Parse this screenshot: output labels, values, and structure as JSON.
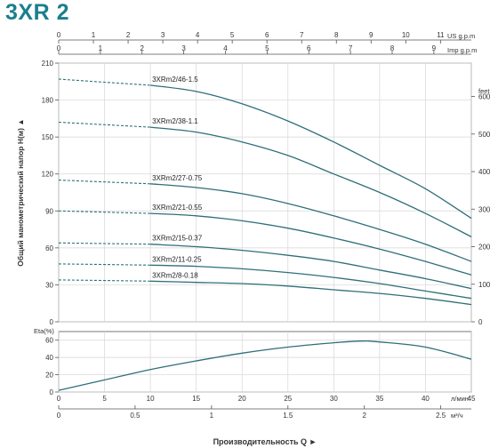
{
  "title": "3XR 2",
  "chart_data": [
    {
      "type": "line",
      "name": "head",
      "ylabel": "Общий манометрический напор H(м)",
      "ylim": [
        0,
        210
      ],
      "yticks": [
        0,
        30,
        60,
        90,
        120,
        150,
        180,
        210
      ],
      "y2label": "feet",
      "y2ticks": [
        0,
        100,
        200,
        300,
        400,
        500,
        600
      ],
      "xlabel": "Производительность Q",
      "xlim": [
        0,
        45
      ],
      "x_lmin_ticks": [
        0,
        5,
        10,
        15,
        20,
        25,
        30,
        35,
        40,
        45
      ],
      "x_lmin_unit": "л/мин",
      "x_m3h_ticks": [
        "0",
        "0.5",
        "1",
        "1.5",
        "2",
        "2.5"
      ],
      "x_m3h_unit": "м³/ч",
      "x_usgpm_ticks": [
        0,
        1,
        2,
        3,
        4,
        5,
        6,
        7,
        8,
        9,
        10,
        11
      ],
      "x_usgpm_unit": "US g.p.m",
      "x_impgpm_ticks": [
        0,
        1,
        2,
        3,
        4,
        5,
        6,
        7,
        8,
        9
      ],
      "x_impgpm_unit": "Imp g.p.m",
      "grid": true,
      "series": [
        {
          "name": "3XRm2/46-1.5",
          "x": [
            0,
            10,
            15,
            20,
            25,
            30,
            35,
            40,
            45
          ],
          "y": [
            197,
            192,
            187,
            177,
            163,
            146,
            127,
            108,
            84
          ]
        },
        {
          "name": "3XRm2/38-1.1",
          "x": [
            0,
            10,
            15,
            20,
            25,
            30,
            35,
            40,
            45
          ],
          "y": [
            162,
            158,
            154,
            146,
            135,
            120,
            105,
            88,
            69
          ]
        },
        {
          "name": "3XRm2/27-0.75",
          "x": [
            0,
            10,
            15,
            20,
            25,
            30,
            35,
            40,
            45
          ],
          "y": [
            115,
            112,
            109,
            104,
            96,
            86,
            75,
            63,
            49
          ]
        },
        {
          "name": "3XRm2/21-0.55",
          "x": [
            0,
            10,
            15,
            20,
            25,
            30,
            35,
            40,
            45
          ],
          "y": [
            90,
            88,
            86,
            82,
            76,
            68,
            59,
            49,
            38
          ]
        },
        {
          "name": "3XRm2/15-0.37",
          "x": [
            0,
            10,
            15,
            20,
            25,
            30,
            35,
            40,
            45
          ],
          "y": [
            64,
            63,
            61,
            58,
            54,
            49,
            42,
            35,
            27
          ]
        },
        {
          "name": "3XRm2/11-0.25",
          "x": [
            0,
            10,
            15,
            20,
            25,
            30,
            35,
            40,
            45
          ],
          "y": [
            47,
            46,
            45,
            43,
            40,
            36,
            31,
            25,
            19
          ]
        },
        {
          "name": "3XRm2/8-0.18",
          "x": [
            0,
            10,
            15,
            20,
            25,
            30,
            35,
            40,
            45
          ],
          "y": [
            34,
            33,
            32,
            31,
            29,
            26,
            23,
            19,
            14
          ]
        }
      ]
    },
    {
      "type": "line",
      "name": "efficiency",
      "ylabel": "Eta(%)",
      "ylim": [
        0,
        70
      ],
      "yticks": [
        0,
        20,
        40,
        60
      ],
      "xlim": [
        0,
        45
      ],
      "grid": true,
      "series": [
        {
          "x": [
            0,
            5,
            10,
            15,
            20,
            25,
            30,
            33,
            35,
            40,
            45
          ],
          "y": [
            2,
            14,
            26,
            36,
            45,
            52,
            57,
            59,
            58,
            52,
            38
          ]
        }
      ]
    }
  ]
}
